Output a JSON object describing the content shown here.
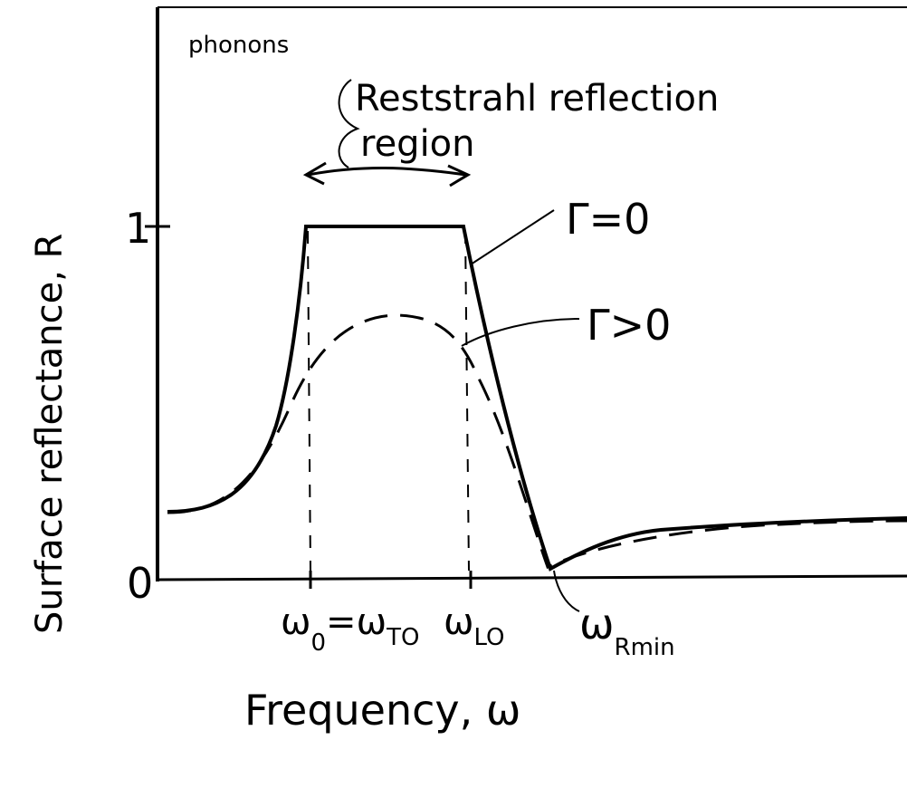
{
  "axes": {
    "y_label": "Surface reflectance, R",
    "x_label": "Frequency, ω",
    "y_ticks": [
      "1",
      "0"
    ]
  },
  "annotations": {
    "corner": "phonons",
    "region_line1": "Reststrahl reflection",
    "region_line2": "region",
    "solid_curve": "Γ=0",
    "dashed_curve": "Γ>0"
  },
  "x_markers": [
    {
      "parts": [
        {
          "text": "ω",
          "sub": "0"
        },
        {
          "text": "=ω",
          "sub": "TO"
        }
      ]
    },
    {
      "parts": [
        {
          "text": "ω",
          "sub": "LO"
        }
      ]
    },
    {
      "parts": [
        {
          "text": "ω",
          "sub": "Rmin"
        }
      ]
    }
  ]
}
